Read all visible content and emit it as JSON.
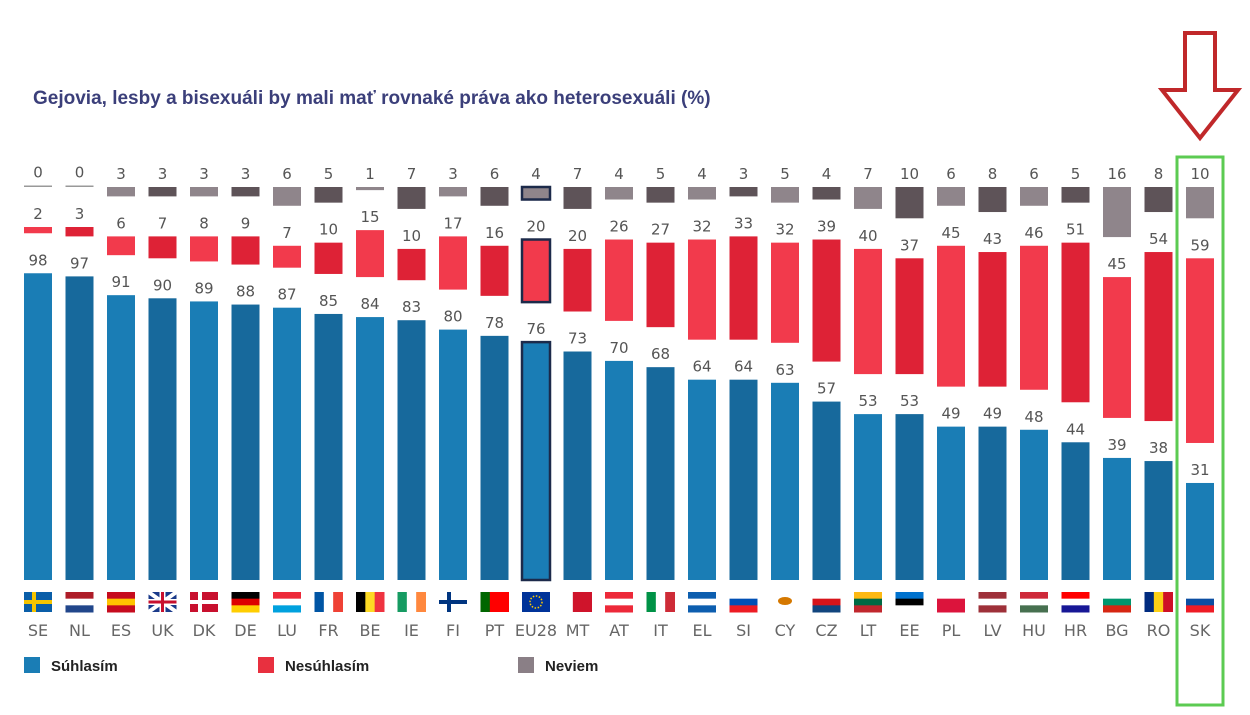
{
  "chart_data": {
    "type": "bar",
    "title": "Gejovia, lesby a bisexuáli by mali mať rovnaké práva ako heterosexuáli  (%)",
    "categories": [
      "SE",
      "NL",
      "ES",
      "UK",
      "DK",
      "DE",
      "LU",
      "FR",
      "BE",
      "IE",
      "FI",
      "PT",
      "EU28",
      "MT",
      "AT",
      "IT",
      "EL",
      "SI",
      "CY",
      "CZ",
      "LT",
      "EE",
      "PL",
      "LV",
      "HU",
      "HR",
      "BG",
      "RO",
      "SK"
    ],
    "series": [
      {
        "name": "Súhlasím",
        "color": "#1a7db5",
        "values": [
          98,
          97,
          91,
          90,
          89,
          88,
          87,
          85,
          84,
          83,
          80,
          78,
          76,
          73,
          70,
          68,
          64,
          64,
          63,
          57,
          53,
          53,
          49,
          49,
          48,
          44,
          39,
          38,
          31
        ]
      },
      {
        "name": "Nesúhlasím",
        "color": "#e8303f",
        "values": [
          2,
          3,
          6,
          7,
          8,
          9,
          7,
          10,
          15,
          10,
          17,
          16,
          20,
          20,
          26,
          27,
          32,
          33,
          32,
          39,
          40,
          37,
          45,
          43,
          46,
          51,
          45,
          54,
          59
        ]
      },
      {
        "name": "Neviem",
        "color": "#8a7f86",
        "values": [
          0,
          0,
          3,
          3,
          3,
          3,
          6,
          5,
          1,
          7,
          3,
          6,
          4,
          7,
          4,
          5,
          4,
          3,
          5,
          4,
          7,
          10,
          6,
          8,
          6,
          5,
          16,
          8,
          10
        ]
      }
    ],
    "highlight": "SK",
    "highlight_color": "#5ccb52",
    "arrow_color": "#c0282a",
    "legend_position": "bottom-left",
    "ylim": [
      0,
      100
    ],
    "grid": false
  }
}
